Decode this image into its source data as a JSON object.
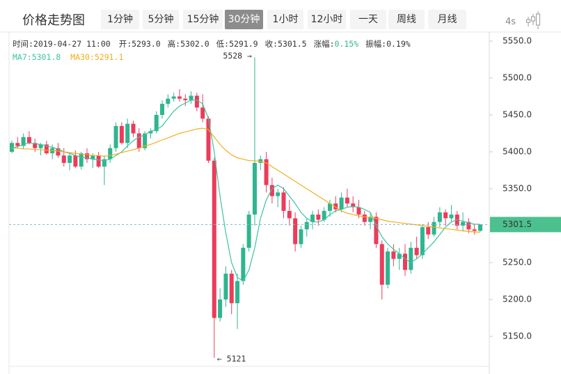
{
  "toolbar": {
    "title": "价格走势图",
    "buttons": [
      "1分钟",
      "5分钟",
      "15分钟",
      "30分钟",
      "1小时",
      "12小时",
      "一天",
      "周线",
      "月线"
    ],
    "active": "30分钟",
    "refresh": "4s"
  },
  "info": {
    "time": "时间:2019-04-27 11:00",
    "open": "开:5293.0",
    "high": "高:5302.0",
    "low": "低:5291.9",
    "close": "收:5301.5",
    "change_label": "涨幅:",
    "change": "0.15%",
    "amplitude": "振幅:0.19%"
  },
  "chart_data": {
    "type": "candlestick",
    "up_color": "#2fb58f",
    "down_color": "#ec3b5b",
    "open": [
      5400,
      5412,
      5408,
      5420,
      5412,
      5405,
      5410,
      5398,
      5405,
      5395,
      5385,
      5395,
      5380,
      5398,
      5390,
      5395,
      5380,
      5390,
      5405,
      5435,
      5412,
      5438,
      5425,
      5405,
      5425,
      5428,
      5450,
      5465,
      5472,
      5475,
      5472,
      5470,
      5476,
      5460,
      5445,
      5388,
      5175,
      5200,
      5235,
      5195,
      5225,
      5270,
      5315,
      5385,
      5390,
      5355,
      5340,
      5345,
      5320,
      5310,
      5275,
      5295,
      5305,
      5315,
      5308,
      5320,
      5330,
      5322,
      5338,
      5330,
      5325,
      5315,
      5305,
      5312,
      5275,
      5220,
      5265,
      5255,
      5262,
      5240,
      5270,
      5260,
      5298,
      5288,
      5305,
      5318,
      5310,
      5315,
      5300,
      5305,
      5295,
      5293
    ],
    "high": [
      5415,
      5420,
      5425,
      5428,
      5418,
      5412,
      5415,
      5410,
      5412,
      5405,
      5398,
      5402,
      5400,
      5405,
      5398,
      5400,
      5395,
      5410,
      5440,
      5440,
      5445,
      5442,
      5432,
      5428,
      5432,
      5455,
      5470,
      5478,
      5480,
      5485,
      5478,
      5482,
      5480,
      5478,
      5448,
      5392,
      5215,
      5245,
      5240,
      5235,
      5275,
      5320,
      5528,
      5395,
      5400,
      5365,
      5350,
      5352,
      5335,
      5318,
      5300,
      5310,
      5320,
      5322,
      5325,
      5335,
      5340,
      5345,
      5350,
      5340,
      5335,
      5320,
      5318,
      5318,
      5280,
      5270,
      5275,
      5270,
      5275,
      5278,
      5285,
      5302,
      5305,
      5312,
      5325,
      5322,
      5328,
      5320,
      5318,
      5310,
      5302,
      5302
    ],
    "low": [
      5398,
      5405,
      5404,
      5410,
      5400,
      5395,
      5396,
      5390,
      5392,
      5380,
      5375,
      5378,
      5376,
      5385,
      5378,
      5378,
      5355,
      5385,
      5400,
      5410,
      5405,
      5420,
      5400,
      5402,
      5418,
      5425,
      5445,
      5460,
      5468,
      5468,
      5462,
      5465,
      5455,
      5440,
      5385,
      5121,
      5170,
      5190,
      5180,
      5160,
      5220,
      5265,
      5300,
      5375,
      5345,
      5330,
      5325,
      5310,
      5300,
      5265,
      5270,
      5285,
      5295,
      5300,
      5305,
      5312,
      5318,
      5318,
      5325,
      5318,
      5310,
      5300,
      5295,
      5270,
      5200,
      5215,
      5245,
      5240,
      5232,
      5235,
      5255,
      5255,
      5282,
      5285,
      5298,
      5300,
      5305,
      5295,
      5292,
      5290,
      5288,
      5291.9
    ],
    "close": [
      5412,
      5408,
      5420,
      5412,
      5405,
      5410,
      5398,
      5405,
      5395,
      5385,
      5395,
      5380,
      5398,
      5390,
      5395,
      5380,
      5390,
      5405,
      5435,
      5412,
      5438,
      5425,
      5405,
      5425,
      5428,
      5450,
      5465,
      5472,
      5475,
      5472,
      5470,
      5476,
      5460,
      5445,
      5388,
      5175,
      5200,
      5235,
      5195,
      5225,
      5270,
      5315,
      5385,
      5390,
      5355,
      5340,
      5345,
      5320,
      5310,
      5275,
      5295,
      5305,
      5315,
      5308,
      5320,
      5330,
      5322,
      5338,
      5330,
      5325,
      5315,
      5305,
      5312,
      5275,
      5220,
      5265,
      5255,
      5262,
      5240,
      5270,
      5260,
      5298,
      5288,
      5305,
      5318,
      5310,
      5315,
      5300,
      5305,
      5295,
      5293,
      5301.5
    ],
    "series": [
      {
        "name": "MA7:5301.8",
        "color": "#3cc4a0",
        "values": [
          5405,
          5407,
          5410,
          5412,
          5411,
          5410,
          5408,
          5406,
          5404,
          5400,
          5398,
          5395,
          5393,
          5392,
          5390,
          5389,
          5388,
          5390,
          5395,
          5400,
          5408,
          5415,
          5420,
          5423,
          5428,
          5430,
          5435,
          5445,
          5455,
          5462,
          5466,
          5470,
          5470,
          5465,
          5445,
          5400,
          5340,
          5290,
          5250,
          5230,
          5225,
          5240,
          5270,
          5310,
          5335,
          5350,
          5355,
          5350,
          5340,
          5330,
          5318,
          5310,
          5305,
          5305,
          5308,
          5315,
          5320,
          5322,
          5325,
          5326,
          5325,
          5322,
          5318,
          5300,
          5285,
          5275,
          5268,
          5262,
          5255,
          5250,
          5255,
          5262,
          5270,
          5278,
          5288,
          5298,
          5305,
          5308,
          5306,
          5304,
          5302,
          5301.8
        ]
      },
      {
        "name": "MA30:5291.1",
        "color": "#f2ae1c",
        "values": [
          5405,
          5405,
          5404,
          5404,
          5403,
          5403,
          5402,
          5402,
          5401,
          5400,
          5399,
          5398,
          5397,
          5396,
          5395,
          5395,
          5394,
          5395,
          5397,
          5399,
          5401,
          5403,
          5405,
          5408,
          5410,
          5413,
          5416,
          5419,
          5422,
          5425,
          5427,
          5429,
          5431,
          5432,
          5430,
          5420,
          5410,
          5402,
          5396,
          5392,
          5390,
          5388,
          5388,
          5387,
          5385,
          5380,
          5375,
          5370,
          5365,
          5360,
          5355,
          5350,
          5345,
          5340,
          5335,
          5330,
          5325,
          5320,
          5317,
          5315,
          5313,
          5312,
          5311,
          5310,
          5308,
          5306,
          5305,
          5304,
          5303,
          5302,
          5301,
          5300,
          5299,
          5298,
          5297,
          5296,
          5295,
          5294,
          5293,
          5292,
          5291.5,
          5291.1
        ]
      }
    ],
    "last_price": 5301.5,
    "last_color": "#4cc08f",
    "max_label": "5528 →",
    "min_label": "← 5121",
    "ylim": [
      5110,
      5560
    ],
    "yticks": [
      {
        "value": 5150,
        "label": "5150.0"
      },
      {
        "value": 5200,
        "label": "5200.0"
      },
      {
        "value": 5250,
        "label": "5250.0"
      },
      {
        "value": 5300,
        "label": "5300.0"
      },
      {
        "value": 5350,
        "label": "5350.0"
      },
      {
        "value": 5400,
        "label": "5400.0"
      },
      {
        "value": 5450,
        "label": "5450.0"
      },
      {
        "value": 5500,
        "label": "5500.0"
      },
      {
        "value": 5550,
        "label": "5550.0"
      }
    ]
  }
}
